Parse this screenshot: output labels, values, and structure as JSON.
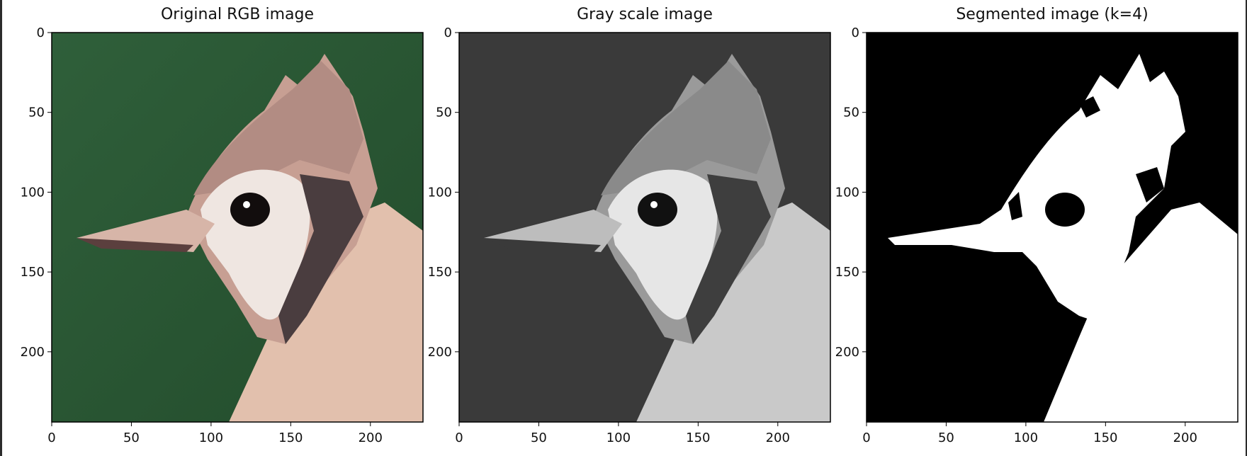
{
  "figure": {
    "panels": [
      {
        "title": "Original RGB image"
      },
      {
        "title": "Gray scale image"
      },
      {
        "title": "Segmented image (k=4)"
      }
    ],
    "xticks": [
      "0",
      "50",
      "100",
      "150",
      "200"
    ],
    "yticks": [
      "0",
      "50",
      "100",
      "150",
      "200"
    ],
    "colors": {
      "background_green": "#2e5d36",
      "gray_background": "#3a3a3a",
      "segment_fg": "#ffffff",
      "segment_bg": "#000000"
    }
  }
}
